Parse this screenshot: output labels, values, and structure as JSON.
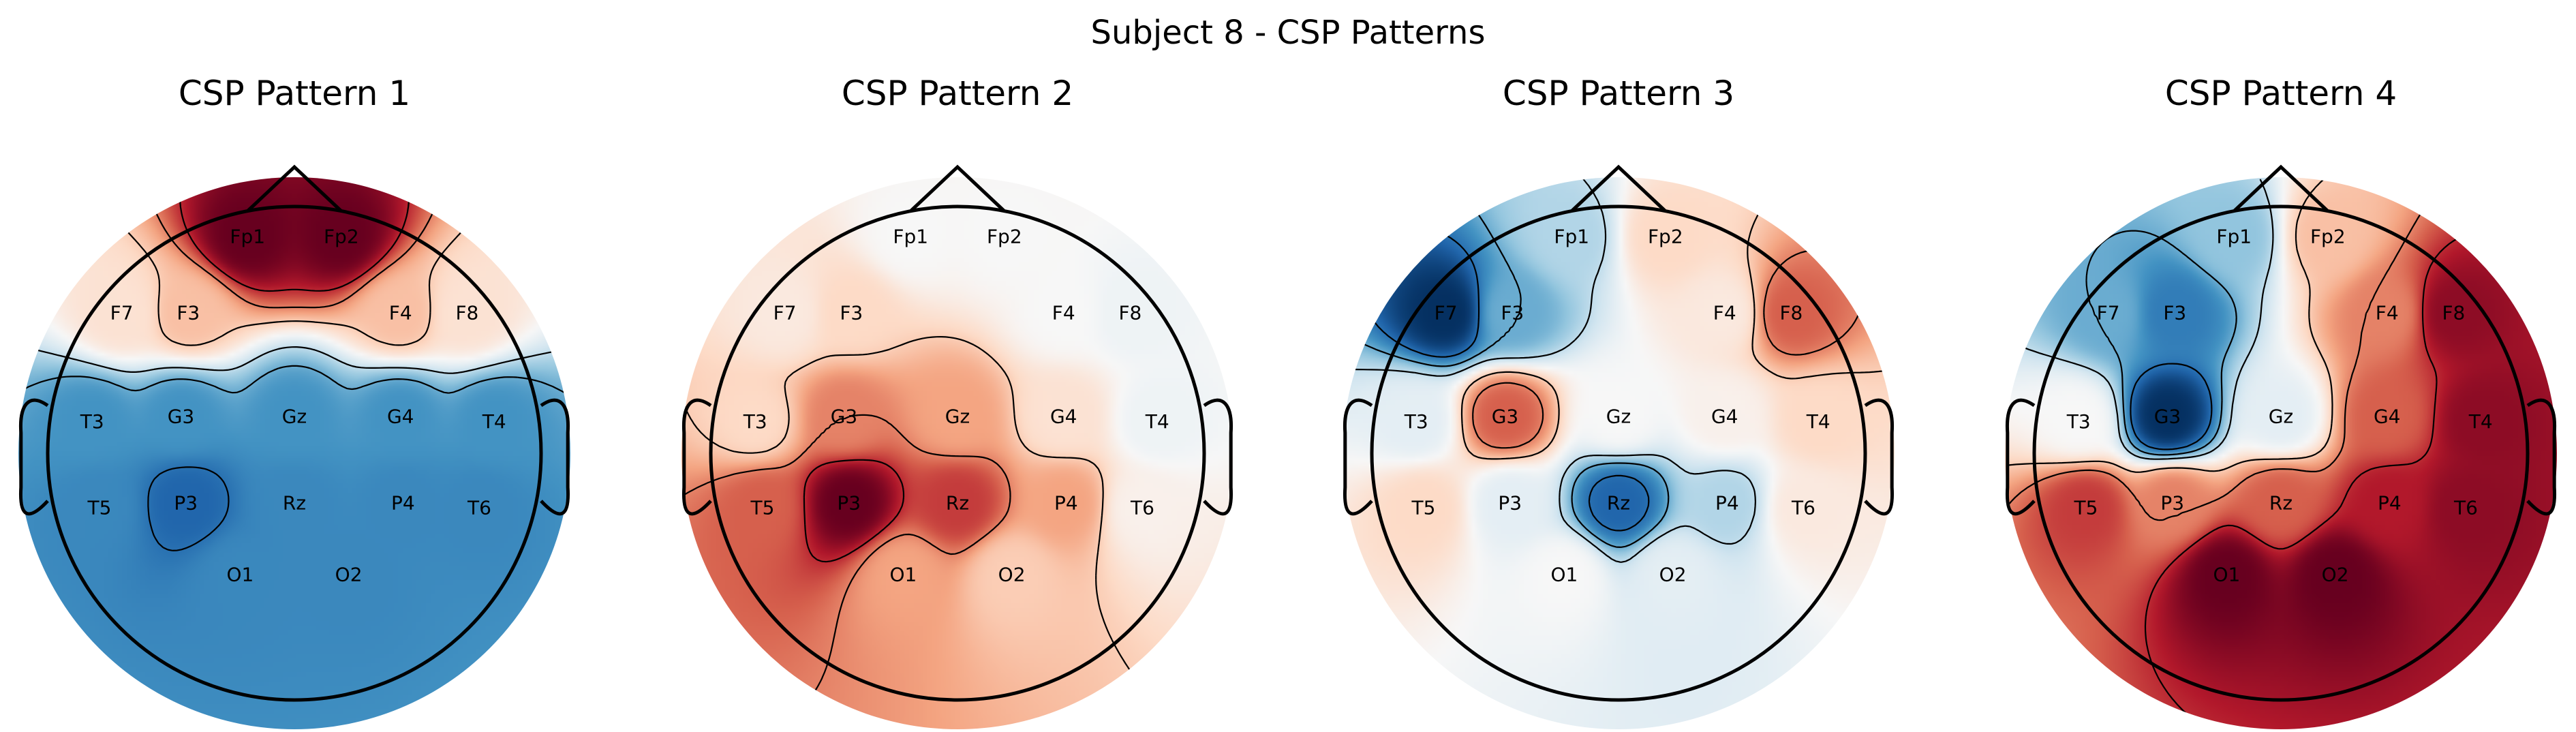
{
  "figure": {
    "title": "Subject 8 - CSP Patterns"
  },
  "chart_data": {
    "type": "heatmap",
    "colormap": "RdBu_r",
    "electrodes": [
      "Fp1",
      "Fp2",
      "F7",
      "F3",
      "F4",
      "F8",
      "T3",
      "G3",
      "Gz",
      "G4",
      "T4",
      "T5",
      "P3",
      "Rz",
      "P4",
      "T6",
      "O1",
      "O2"
    ],
    "panels": [
      {
        "title": "CSP Pattern 1",
        "weights": {
          "Fp1": 1.0,
          "Fp2": 1.0,
          "F7": 0.15,
          "F3": 0.3,
          "F4": 0.3,
          "F8": 0.15,
          "T3": -0.6,
          "G3": -0.6,
          "Gz": -0.6,
          "G4": -0.6,
          "T4": -0.6,
          "T5": -0.65,
          "P3": -0.8,
          "Rz": -0.65,
          "P4": -0.65,
          "T6": -0.65,
          "O1": -0.65,
          "O2": -0.65
        }
      },
      {
        "title": "CSP Pattern 2",
        "weights": {
          "Fp1": 0.0,
          "Fp2": 0.0,
          "F7": 0.1,
          "F3": 0.2,
          "F4": 0.0,
          "F8": -0.05,
          "T3": 0.2,
          "G3": 0.5,
          "Gz": 0.4,
          "G4": 0.15,
          "T4": -0.05,
          "T5": 0.6,
          "P3": 1.0,
          "Rz": 0.7,
          "P4": 0.4,
          "T6": 0.05,
          "O1": 0.4,
          "O2": 0.25
        }
      },
      {
        "title": "CSP Pattern 3",
        "weights": {
          "Fp1": -0.3,
          "Fp2": 0.2,
          "F7": -1.0,
          "F3": -0.5,
          "F4": 0.1,
          "F8": 0.6,
          "T3": -0.1,
          "G3": 0.6,
          "Gz": 0.0,
          "G4": 0.05,
          "T4": 0.2,
          "T5": 0.2,
          "P3": -0.1,
          "Rz": -0.8,
          "P4": -0.3,
          "T6": 0.1,
          "O1": 0.0,
          "O2": -0.1
        }
      },
      {
        "title": "CSP Pattern 4",
        "weights": {
          "Fp1": -0.4,
          "Fp2": 0.3,
          "F7": -0.5,
          "F3": -0.7,
          "F4": 0.5,
          "F8": 0.9,
          "T3": 0.0,
          "G3": -1.0,
          "Gz": -0.1,
          "G4": 0.6,
          "T4": 0.9,
          "T5": 0.7,
          "P3": 0.5,
          "Rz": 0.6,
          "P4": 0.8,
          "T6": 0.9,
          "O1": 1.0,
          "O2": 1.0
        }
      }
    ]
  }
}
